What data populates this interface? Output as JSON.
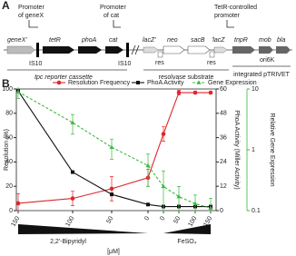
{
  "panel_a": {
    "label": "A",
    "promoter_genex": [
      "Promoter",
      "of geneX"
    ],
    "promoter_cat": [
      "Promoter",
      "of cat"
    ],
    "promoter_tetr": [
      "TetR-controlled",
      "promoter"
    ],
    "genes": [
      "geneX'",
      "tetR",
      "phoA",
      "cat",
      "lacZ'",
      "neo",
      "sacB",
      "'lacZ",
      "tnpR",
      "mob",
      "bla"
    ],
    "is_left": "IS10",
    "is_right": "IS10",
    "res_left": "res",
    "res_right": "res",
    "ori": "ori6K",
    "groups": [
      "tpc reporter cassette",
      "resolvase substrate",
      "integrated pTRIVET"
    ]
  },
  "chart_data": {
    "type": "line",
    "panel_label": "B",
    "legend": "top",
    "categories": [
      "150",
      "100",
      "50",
      "0",
      "0",
      "50",
      "100",
      "150"
    ],
    "xgroups": [
      "2,2'-Bipyridyl",
      "FeSO₄"
    ],
    "xlabel": "[μM]",
    "ylabel": "Resolution (%)",
    "y2label": "PhoA Activity (Miller Activity)",
    "y3label": "Relative Gene Expression",
    "ylim": [
      0,
      100
    ],
    "yticks": [
      0,
      20,
      40,
      60,
      80,
      100
    ],
    "y2lim": [
      0,
      60
    ],
    "y2ticks": [
      0,
      12,
      24,
      36,
      48,
      60
    ],
    "y3lim": [
      0.1,
      10
    ],
    "y3ticks": [
      0.1,
      1,
      10
    ],
    "y3scale": "log",
    "series": [
      {
        "name": "Resolution Frequency",
        "color": "#e0262b",
        "marker": "circle",
        "values": [
          6,
          10,
          18,
          27,
          63,
          97,
          97,
          97
        ],
        "errors": [
          8,
          6,
          10,
          7,
          6,
          2,
          1,
          1
        ]
      },
      {
        "name": "PhoA Activity",
        "color": "#111111",
        "marker": "square",
        "axis": "y2",
        "values": [
          59,
          19,
          8,
          3,
          2,
          2,
          2,
          2
        ]
      },
      {
        "name": "Gene Expression",
        "color": "#3cb83c",
        "marker": "triangle",
        "axis": "y3",
        "dashed": true,
        "values": [
          9,
          2.8,
          1.1,
          0.55,
          0.25,
          0.17,
          0.13,
          0.11
        ],
        "errors": [
          2,
          1,
          0.4,
          0.3,
          0.2,
          0.08,
          0.05,
          0.05
        ]
      }
    ]
  }
}
